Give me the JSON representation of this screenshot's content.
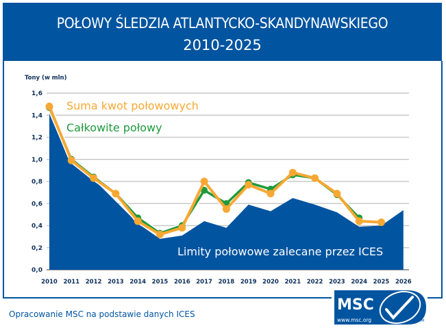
{
  "header": {
    "title_line1": "POŁOWY ŚLEDZIA ATLANTYCKO-SKANDYNAWSKIEGO",
    "title_line2": "2010-2025"
  },
  "footer": {
    "source": "Opracowanie MSC na podstawie danych ICES",
    "logo_text": "MSC",
    "logo_url_text": "www.msc.org",
    "logo_tm": "TM"
  },
  "colors": {
    "brand_blue": "#0054a0",
    "quota_orange": "#f7a833",
    "catch_green": "#1e9a3c",
    "grid_gray": "#c8c8c8"
  },
  "chart_data": {
    "type": "line",
    "title": "POŁOWY ŚLEDZIA ATLANTYCKO-SKANDYNAWSKIEGO 2010-2025",
    "xlabel": "",
    "ylabel": "Tony (w mln)",
    "ylim": [
      0,
      1.6
    ],
    "yticks": [
      "0,0",
      "0,2",
      "0,4",
      "0,6",
      "0,8",
      "1,0",
      "1,2",
      "1,4",
      "1,6"
    ],
    "grid": true,
    "categories": [
      "2010",
      "2011",
      "2012",
      "2013",
      "2014",
      "2015",
      "2016",
      "2017",
      "2018",
      "2019",
      "2020",
      "2021",
      "2022",
      "2023",
      "2024",
      "2025",
      "2026"
    ],
    "series": [
      {
        "name": "Limity połowowe zalecane przez  ICES",
        "type": "area",
        "color": "#0054a0",
        "values": [
          1.45,
          1.0,
          0.82,
          0.62,
          0.42,
          0.28,
          0.31,
          0.44,
          0.38,
          0.59,
          0.53,
          0.65,
          0.59,
          0.52,
          0.39,
          0.4,
          0.54
        ]
      },
      {
        "name": "Całkowite połowy",
        "type": "line",
        "color": "#1e9a3c",
        "values": [
          1.47,
          1.0,
          0.84,
          0.69,
          0.47,
          0.33,
          0.4,
          0.72,
          0.6,
          0.79,
          0.73,
          0.86,
          0.83,
          0.68,
          0.47,
          null,
          null
        ]
      },
      {
        "name": "Suma kwot połowowych",
        "type": "line",
        "color": "#f7a833",
        "values": [
          1.48,
          0.99,
          0.83,
          0.69,
          0.44,
          0.32,
          0.38,
          0.8,
          0.55,
          0.77,
          0.69,
          0.88,
          0.83,
          0.69,
          0.44,
          0.43,
          null
        ]
      }
    ],
    "legend": {
      "position": "inline",
      "entries": [
        "Suma kwot połowowych",
        "Całkowite połowy",
        "Limity połowowe zalecane przez  ICES"
      ]
    }
  }
}
